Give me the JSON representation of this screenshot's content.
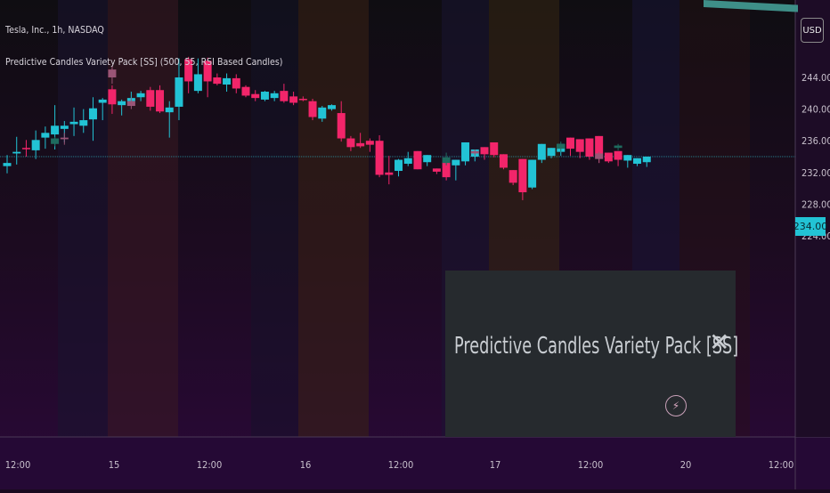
{
  "header": {
    "ticker": "Tesla, Inc., 1h, NASDAQ",
    "indicator": "Predictive Candles Variety Pack [SS] (500, 55, RSI Based Candles)"
  },
  "price_axis": {
    "currency": "USD",
    "last_price": "234.00"
  },
  "overlay": {
    "title": "Predictive Candles Variety Pack [SS]",
    "close_glyph": "✕",
    "icon": "lightning-icon"
  },
  "colors": {
    "up": "#22c3d5",
    "down": "#f2256a",
    "pred_up": "#1e6b5e",
    "pred_down": "#9a5576",
    "background_top": "#0f0d12",
    "background_bottom": "#2a0838",
    "axis_text": "#c8c0cc"
  },
  "chart_data": {
    "type": "candlestick",
    "symbol": "Tesla, Inc.",
    "timeframe": "1h",
    "exchange": "NASDAQ",
    "ylim": [
      219.0,
      247.0
    ],
    "y_ticks": [
      "244.00",
      "240.00",
      "236.00",
      "232.00",
      "228.00",
      "224.00"
    ],
    "x_ticks": [
      "12:00",
      "15",
      "12:00",
      "16",
      "12:00",
      "17",
      "12:00",
      "20",
      "12:00"
    ],
    "last_price": 234.0,
    "candles": [
      [
        233.2,
        234.2,
        232.8,
        231.9,
        "up"
      ],
      [
        234.4,
        236.5,
        234.6,
        233.0,
        "up"
      ],
      [
        235.1,
        236.1,
        235.0,
        234.0,
        "down"
      ],
      [
        236.1,
        237.3,
        234.8,
        233.7,
        "up"
      ],
      [
        237.0,
        237.8,
        236.4,
        235.0,
        "up"
      ],
      [
        237.9,
        240.5,
        236.8,
        234.9,
        "up"
      ],
      [
        237.9,
        238.5,
        237.5,
        235.8,
        "up"
      ],
      [
        238.4,
        240.2,
        238.1,
        236.6,
        "up"
      ],
      [
        238.6,
        240.0,
        237.9,
        237.0,
        "up"
      ],
      [
        240.1,
        241.5,
        238.7,
        236.0,
        "up"
      ],
      [
        241.2,
        241.4,
        240.8,
        238.6,
        "up"
      ],
      [
        242.5,
        243.0,
        240.6,
        239.4,
        "down"
      ],
      [
        241.0,
        241.2,
        240.5,
        239.2,
        "up"
      ],
      [
        241.4,
        242.2,
        241.0,
        240.7,
        "up"
      ],
      [
        242.0,
        242.3,
        241.5,
        241.0,
        "up"
      ],
      [
        242.4,
        242.8,
        240.3,
        239.8,
        "down"
      ],
      [
        242.4,
        243.0,
        239.7,
        239.5,
        "down"
      ],
      [
        240.2,
        241.0,
        239.6,
        236.4,
        "up"
      ],
      [
        244.0,
        246.4,
        240.3,
        238.6,
        "up"
      ],
      [
        246.3,
        246.6,
        243.5,
        242.0,
        "down"
      ],
      [
        244.4,
        246.4,
        242.3,
        242.0,
        "up"
      ],
      [
        246.1,
        246.5,
        243.5,
        241.5,
        "down"
      ],
      [
        244.0,
        244.5,
        243.2,
        243.0,
        "down"
      ],
      [
        243.9,
        244.5,
        243.1,
        242.2,
        "up"
      ],
      [
        243.9,
        244.4,
        242.6,
        242.0,
        "down"
      ],
      [
        242.8,
        243.0,
        241.7,
        241.5,
        "down"
      ],
      [
        241.9,
        242.4,
        241.4,
        241.0,
        "down"
      ],
      [
        242.2,
        242.3,
        241.2,
        241.0,
        "up"
      ],
      [
        242.0,
        242.3,
        241.4,
        241.0,
        "up"
      ],
      [
        242.3,
        243.2,
        241.0,
        240.8,
        "down"
      ],
      [
        241.6,
        242.2,
        240.8,
        240.5,
        "down"
      ],
      [
        241.3,
        241.6,
        241.2,
        241.0,
        "down"
      ],
      [
        241.0,
        241.3,
        239.0,
        238.6,
        "down"
      ],
      [
        240.2,
        240.4,
        238.8,
        238.4,
        "up"
      ],
      [
        240.5,
        240.6,
        240.0,
        239.8,
        "up"
      ],
      [
        239.5,
        241.0,
        236.3,
        235.9,
        "down"
      ],
      [
        236.3,
        236.6,
        235.2,
        234.7,
        "down"
      ],
      [
        235.7,
        237.0,
        235.3,
        235.1,
        "down"
      ],
      [
        236.0,
        236.3,
        235.5,
        234.6,
        "down"
      ],
      [
        236.0,
        236.7,
        231.7,
        231.4,
        "down"
      ],
      [
        232.0,
        234.1,
        231.7,
        230.5,
        "down"
      ],
      [
        233.6,
        233.7,
        232.2,
        231.5,
        "up"
      ],
      [
        233.8,
        234.6,
        233.1,
        232.8,
        "up"
      ],
      [
        234.7,
        234.4,
        232.4,
        232.4,
        "down"
      ],
      [
        234.2,
        233.9,
        233.3,
        232.8,
        "up"
      ],
      [
        232.5,
        232.3,
        232.1,
        231.8,
        "down"
      ],
      [
        233.3,
        233.2,
        231.4,
        231.0,
        "down"
      ],
      [
        233.6,
        233.6,
        232.9,
        231.0,
        "up"
      ],
      [
        235.8,
        235.2,
        233.4,
        232.9,
        "up"
      ],
      [
        234.9,
        234.5,
        234.0,
        233.4,
        "up"
      ],
      [
        235.2,
        234.6,
        234.3,
        233.6,
        "down"
      ],
      [
        235.8,
        235.0,
        234.2,
        233.9,
        "down"
      ],
      [
        234.3,
        234.1,
        232.6,
        232.4,
        "down"
      ],
      [
        232.3,
        231.9,
        230.7,
        230.4,
        "down"
      ],
      [
        233.7,
        233.5,
        229.5,
        228.5,
        "down"
      ],
      [
        233.6,
        233.5,
        230.1,
        229.9,
        "up"
      ],
      [
        235.6,
        234.7,
        233.6,
        233.2,
        "up"
      ],
      [
        235.1,
        234.6,
        234.1,
        233.8,
        "up"
      ],
      [
        235.6,
        235.2,
        234.6,
        234.1,
        "up"
      ],
      [
        236.4,
        236.0,
        235.0,
        234.1,
        "down"
      ],
      [
        236.2,
        235.9,
        234.6,
        233.8,
        "down"
      ],
      [
        236.3,
        236.1,
        234.0,
        233.6,
        "down"
      ],
      [
        236.6,
        234.6,
        234.3,
        233.2,
        "down"
      ],
      [
        234.5,
        234.2,
        233.4,
        233.2,
        "down"
      ],
      [
        234.7,
        234.0,
        233.6,
        232.8,
        "down"
      ],
      [
        234.2,
        233.8,
        233.5,
        232.6,
        "up"
      ],
      [
        233.8,
        233.3,
        233.1,
        232.8,
        "up"
      ],
      [
        234.0,
        233.7,
        233.3,
        232.7,
        "up"
      ]
    ],
    "prediction_candles": [
      [
        245.0,
        245.5,
        244.0,
        243.2,
        "down"
      ],
      [
        236.2,
        237.0,
        236.4,
        235.5,
        "down"
      ],
      [
        236.3,
        236.5,
        235.6,
        235.3,
        "up"
      ],
      [
        241.0,
        241.4,
        240.4,
        240.0,
        "down"
      ],
      [
        233.9,
        234.5,
        233.2,
        232.9,
        "up"
      ],
      [
        234.7,
        234.9,
        234.4,
        234.1,
        "down"
      ],
      [
        235.6,
        235.9,
        235.0,
        234.6,
        "up"
      ],
      [
        234.4,
        234.6,
        233.7,
        233.2,
        "down"
      ],
      [
        235.4,
        235.6,
        235.1,
        234.8,
        "up"
      ]
    ]
  }
}
